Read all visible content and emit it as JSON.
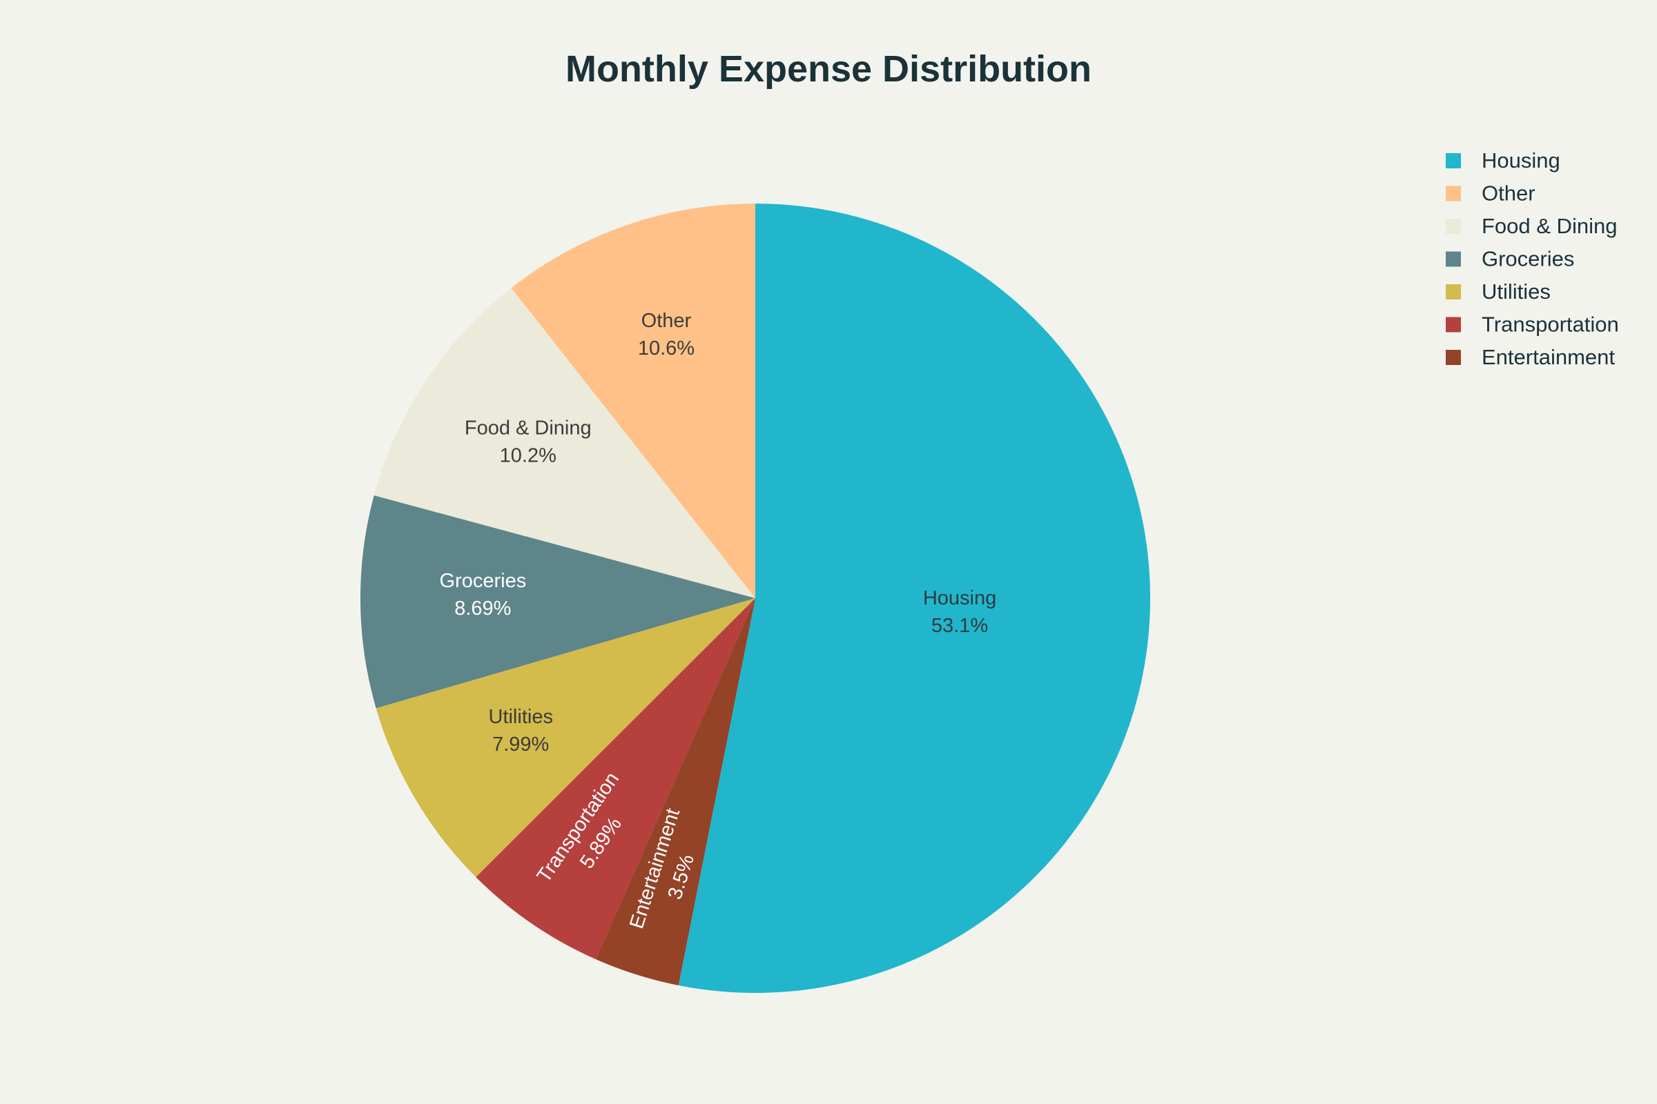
{
  "chart_data": {
    "type": "pie",
    "title": "Monthly Expense Distribution",
    "direction": "counterclockwise",
    "start": "top",
    "legend_position": "top-right",
    "slices": [
      {
        "label": "Housing",
        "value": 53.1,
        "display": "53.1%",
        "color": "#21b6cc",
        "text_color": "#2d3b3f",
        "label_orient": "horizontal"
      },
      {
        "label": "Other",
        "value": 10.6,
        "display": "10.6%",
        "color": "#ffc187",
        "text_color": "#3c3c3c",
        "label_orient": "horizontal"
      },
      {
        "label": "Food & Dining",
        "value": 10.2,
        "display": "10.2%",
        "color": "#eceada",
        "text_color": "#3c3c3c",
        "label_orient": "horizontal"
      },
      {
        "label": "Groceries",
        "value": 8.69,
        "display": "8.69%",
        "color": "#5e858a",
        "text_color": "#ffffff",
        "label_orient": "horizontal"
      },
      {
        "label": "Utilities",
        "value": 7.99,
        "display": "7.99%",
        "color": "#d3bb4c",
        "text_color": "#3c3c3c",
        "label_orient": "horizontal"
      },
      {
        "label": "Transportation",
        "value": 5.89,
        "display": "5.89%",
        "color": "#b5403e",
        "text_color": "#ffffff",
        "label_orient": "radial"
      },
      {
        "label": "Entertainment",
        "value": 3.5,
        "display": "3.5%",
        "color": "#944327",
        "text_color": "#ffffff",
        "label_orient": "radial"
      }
    ]
  }
}
